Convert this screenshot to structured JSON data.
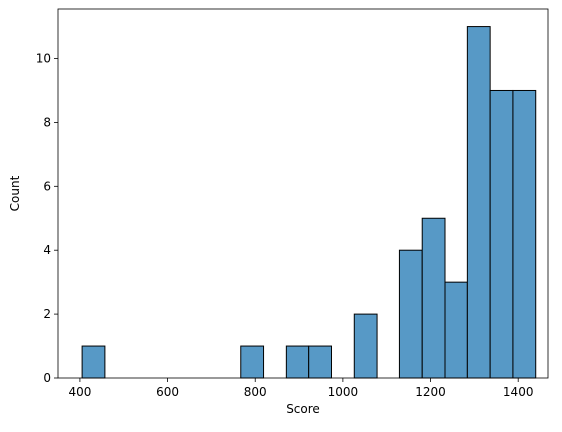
{
  "chart_data": {
    "type": "bar",
    "xlabel": "Score",
    "ylabel": "Count",
    "xlim": [
      350,
      1468
    ],
    "ylim": [
      0,
      11.55
    ],
    "xticks": [
      400,
      600,
      800,
      1000,
      1200,
      1400
    ],
    "yticks": [
      0,
      2,
      4,
      6,
      8,
      10
    ],
    "bin_width": 51.7,
    "bars": [
      {
        "x0": 405,
        "x1": 457,
        "value": 1
      },
      {
        "x0": 767,
        "x1": 819,
        "value": 1
      },
      {
        "x0": 871,
        "x1": 922,
        "value": 1
      },
      {
        "x0": 922,
        "x1": 974,
        "value": 1
      },
      {
        "x0": 1026,
        "x1": 1078,
        "value": 2
      },
      {
        "x0": 1129,
        "x1": 1181,
        "value": 4
      },
      {
        "x0": 1181,
        "x1": 1233,
        "value": 5
      },
      {
        "x0": 1233,
        "x1": 1284,
        "value": 3
      },
      {
        "x0": 1284,
        "x1": 1336,
        "value": 11
      },
      {
        "x0": 1336,
        "x1": 1388,
        "value": 9
      },
      {
        "x0": 1388,
        "x1": 1440,
        "value": 9
      }
    ],
    "grid": false,
    "bar_color": "#5799c6",
    "edge_color": "#000000"
  }
}
